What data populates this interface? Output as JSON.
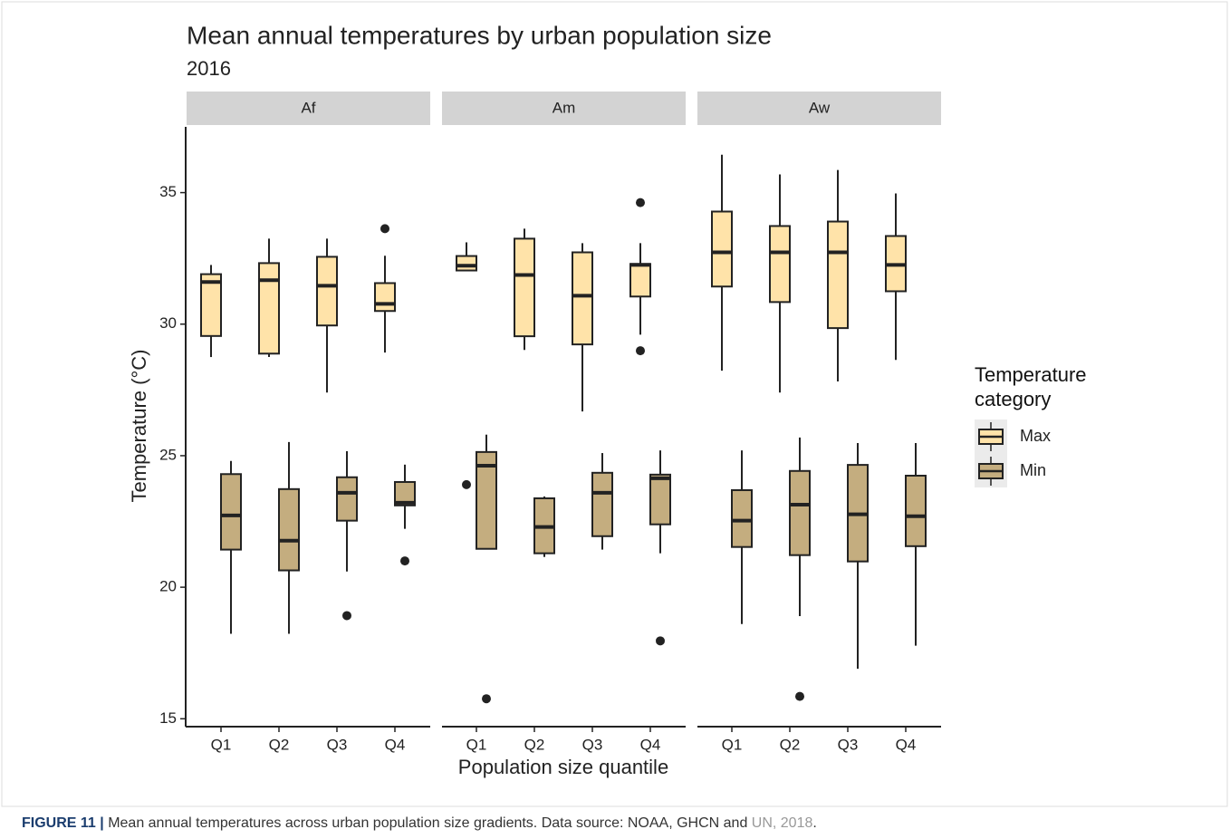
{
  "chart_data": {
    "type": "boxplot",
    "title": "Mean annual temperatures by urban population size",
    "subtitle": "2016",
    "x_label": "Population size quantile",
    "y_label": "Temperature (°C)",
    "facets": [
      "Af",
      "Am",
      "Aw"
    ],
    "categories": [
      "Q1",
      "Q2",
      "Q3",
      "Q4"
    ],
    "ylim": [
      14.7,
      37.5
    ],
    "yticks": [
      15,
      20,
      25,
      30,
      35
    ],
    "legend_title": "Temperature category",
    "series": [
      {
        "name": "Max",
        "color": "#ffe3a9",
        "boxes": [
          [
            {
              "low": 28.75,
              "q1": 29.55,
              "median": 31.6,
              "q3": 31.9,
              "high": 32.25,
              "outliers": []
            },
            {
              "low": 28.75,
              "q1": 28.88,
              "median": 31.67,
              "q3": 32.32,
              "high": 33.25,
              "outliers": []
            },
            {
              "low": 27.4,
              "q1": 29.95,
              "median": 31.46,
              "q3": 32.56,
              "high": 33.25,
              "outliers": []
            },
            {
              "low": 28.92,
              "q1": 30.5,
              "median": 30.77,
              "q3": 31.56,
              "high": 32.6,
              "outliers": [
                33.63
              ]
            }
          ],
          [
            {
              "low": 32.04,
              "q1": 32.04,
              "median": 32.22,
              "q3": 32.59,
              "high": 33.11,
              "outliers": [
                23.9
              ]
            },
            {
              "low": 29.02,
              "q1": 29.54,
              "median": 31.87,
              "q3": 33.25,
              "high": 33.63,
              "outliers": []
            },
            {
              "low": 26.68,
              "q1": 29.23,
              "median": 31.08,
              "q3": 32.73,
              "high": 33.08,
              "outliers": []
            },
            {
              "low": 29.6,
              "q1": 31.05,
              "median": 32.25,
              "q3": 32.29,
              "high": 33.08,
              "outliers": [
                34.62,
                28.99
              ]
            }
          ],
          [
            {
              "low": 28.23,
              "q1": 31.43,
              "median": 32.73,
              "q3": 34.28,
              "high": 36.44,
              "outliers": []
            },
            {
              "low": 27.4,
              "q1": 30.84,
              "median": 32.73,
              "q3": 33.73,
              "high": 35.69,
              "outliers": []
            },
            {
              "low": 27.82,
              "q1": 29.85,
              "median": 32.73,
              "q3": 33.9,
              "high": 35.86,
              "outliers": []
            },
            {
              "low": 28.64,
              "q1": 31.25,
              "median": 32.25,
              "q3": 33.35,
              "high": 34.97,
              "outliers": []
            }
          ]
        ]
      },
      {
        "name": "Min",
        "color": "#c4ad7f",
        "boxes": [
          [
            {
              "low": 18.23,
              "q1": 21.43,
              "median": 22.73,
              "q3": 24.3,
              "high": 24.8,
              "outliers": []
            },
            {
              "low": 18.23,
              "q1": 20.64,
              "median": 21.77,
              "q3": 23.73,
              "high": 25.52,
              "outliers": []
            },
            {
              "low": 20.6,
              "q1": 22.53,
              "median": 23.59,
              "q3": 24.18,
              "high": 25.17,
              "outliers": [
                18.92
              ]
            },
            {
              "low": 22.22,
              "q1": 23.11,
              "median": 23.21,
              "q3": 24.0,
              "high": 24.66,
              "outliers": [
                21.0
              ]
            }
          ],
          [
            {
              "low": 21.46,
              "q1": 21.46,
              "median": 24.62,
              "q3": 25.14,
              "high": 25.8,
              "outliers": [
                15.76
              ]
            },
            {
              "low": 21.15,
              "q1": 21.29,
              "median": 22.29,
              "q3": 23.38,
              "high": 23.45,
              "outliers": []
            },
            {
              "low": 21.43,
              "q1": 21.94,
              "median": 23.59,
              "q3": 24.35,
              "high": 25.1,
              "outliers": []
            },
            {
              "low": 21.29,
              "q1": 22.39,
              "median": 24.14,
              "q3": 24.28,
              "high": 25.2,
              "outliers": [
                17.96
              ]
            }
          ],
          [
            {
              "low": 18.6,
              "q1": 21.53,
              "median": 22.53,
              "q3": 23.69,
              "high": 25.2,
              "outliers": []
            },
            {
              "low": 18.9,
              "q1": 21.22,
              "median": 23.14,
              "q3": 24.42,
              "high": 25.69,
              "outliers": [
                15.85
              ]
            },
            {
              "low": 16.9,
              "q1": 20.98,
              "median": 22.77,
              "q3": 24.65,
              "high": 25.48,
              "outliers": []
            },
            {
              "low": 17.78,
              "q1": 21.56,
              "median": 22.7,
              "q3": 24.24,
              "high": 25.48,
              "outliers": []
            }
          ]
        ]
      }
    ]
  },
  "caption": {
    "label": "FIGURE 11 |",
    "text": "Mean annual temperatures across urban population size gradients. Data source: NOAA, GHCN and ",
    "link": "UN, 2018",
    "end": "."
  }
}
